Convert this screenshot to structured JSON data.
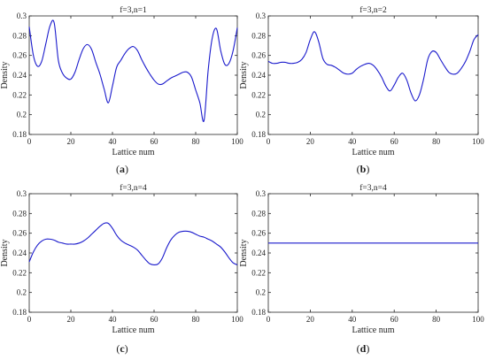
{
  "chart_data": [
    {
      "type": "line",
      "title": "f=3,n=1",
      "caption_letter": "a",
      "xlabel": "Lattice num",
      "ylabel": "Density",
      "xlim": [
        0,
        100
      ],
      "ylim": [
        0.18,
        0.3
      ],
      "xticks": [
        "0",
        "20",
        "40",
        "60",
        "80",
        "100"
      ],
      "yticks": [
        "0.18",
        "0.2",
        "0.22",
        "0.24",
        "0.26",
        "0.28",
        "0.3"
      ],
      "grid": false,
      "line_color": "#1a1acc",
      "series": [
        {
          "x": [
            0,
            2,
            4,
            6,
            8,
            10,
            12,
            14,
            16,
            18,
            20,
            22,
            24,
            26,
            28,
            30,
            32,
            34,
            36,
            38,
            40,
            42,
            44,
            46,
            48,
            50,
            52,
            54,
            56,
            58,
            60,
            62,
            64,
            66,
            68,
            70,
            72,
            74,
            76,
            78,
            80,
            82,
            84,
            86,
            88,
            90,
            92,
            94,
            96,
            98,
            100
          ],
          "values": [
            0.289,
            0.26,
            0.249,
            0.254,
            0.272,
            0.29,
            0.293,
            0.255,
            0.242,
            0.237,
            0.236,
            0.243,
            0.256,
            0.267,
            0.271,
            0.266,
            0.253,
            0.241,
            0.226,
            0.212,
            0.229,
            0.248,
            0.255,
            0.262,
            0.267,
            0.269,
            0.265,
            0.256,
            0.248,
            0.241,
            0.235,
            0.231,
            0.231,
            0.234,
            0.237,
            0.239,
            0.241,
            0.243,
            0.243,
            0.238,
            0.225,
            0.212,
            0.194,
            0.245,
            0.278,
            0.287,
            0.265,
            0.251,
            0.252,
            0.265,
            0.288
          ]
        }
      ]
    },
    {
      "type": "line",
      "title": "f=3,n=2",
      "caption_letter": "b",
      "xlabel": "Lattice num",
      "ylabel": "Density",
      "xlim": [
        0,
        100
      ],
      "ylim": [
        0.18,
        0.3
      ],
      "xticks": [
        "0",
        "20",
        "40",
        "60",
        "80",
        "100"
      ],
      "yticks": [
        "0.18",
        "0.2",
        "0.22",
        "0.24",
        "0.26",
        "0.28",
        "0.3"
      ],
      "grid": false,
      "line_color": "#1a1acc",
      "series": [
        {
          "x": [
            0,
            2,
            4,
            6,
            8,
            10,
            12,
            14,
            16,
            18,
            20,
            22,
            24,
            26,
            28,
            30,
            32,
            34,
            36,
            38,
            40,
            42,
            44,
            46,
            48,
            50,
            52,
            54,
            56,
            58,
            60,
            62,
            64,
            66,
            68,
            70,
            72,
            74,
            76,
            78,
            80,
            82,
            84,
            86,
            88,
            90,
            92,
            94,
            96,
            98,
            100
          ],
          "values": [
            0.254,
            0.252,
            0.252,
            0.253,
            0.253,
            0.252,
            0.252,
            0.253,
            0.256,
            0.263,
            0.276,
            0.284,
            0.274,
            0.257,
            0.251,
            0.25,
            0.248,
            0.245,
            0.242,
            0.241,
            0.242,
            0.246,
            0.249,
            0.251,
            0.252,
            0.25,
            0.245,
            0.238,
            0.229,
            0.224,
            0.23,
            0.238,
            0.242,
            0.235,
            0.222,
            0.214,
            0.22,
            0.236,
            0.256,
            0.264,
            0.263,
            0.256,
            0.249,
            0.243,
            0.241,
            0.242,
            0.247,
            0.254,
            0.264,
            0.276,
            0.281
          ]
        }
      ]
    },
    {
      "type": "line",
      "title": "f=3,n=4",
      "caption_letter": "c",
      "xlabel": "Lattice num",
      "ylabel": "Density",
      "xlim": [
        0,
        100
      ],
      "ylim": [
        0.18,
        0.3
      ],
      "xticks": [
        "0",
        "20",
        "40",
        "60",
        "80",
        "100"
      ],
      "yticks": [
        "0.18",
        "0.2",
        "0.22",
        "0.24",
        "0.26",
        "0.28",
        "0.3"
      ],
      "grid": false,
      "line_color": "#1a1acc",
      "series": [
        {
          "x": [
            0,
            2,
            4,
            6,
            8,
            10,
            12,
            14,
            16,
            18,
            20,
            22,
            24,
            26,
            28,
            30,
            32,
            34,
            36,
            38,
            40,
            42,
            44,
            46,
            48,
            50,
            52,
            54,
            56,
            58,
            60,
            62,
            64,
            66,
            68,
            70,
            72,
            74,
            76,
            78,
            80,
            82,
            84,
            86,
            88,
            90,
            92,
            94,
            96,
            98,
            100
          ],
          "values": [
            0.231,
            0.241,
            0.248,
            0.252,
            0.254,
            0.254,
            0.253,
            0.251,
            0.25,
            0.249,
            0.249,
            0.249,
            0.25,
            0.252,
            0.255,
            0.259,
            0.263,
            0.267,
            0.27,
            0.27,
            0.265,
            0.258,
            0.253,
            0.25,
            0.248,
            0.246,
            0.243,
            0.238,
            0.233,
            0.229,
            0.228,
            0.229,
            0.235,
            0.245,
            0.253,
            0.258,
            0.261,
            0.262,
            0.262,
            0.261,
            0.259,
            0.257,
            0.256,
            0.254,
            0.252,
            0.249,
            0.246,
            0.241,
            0.235,
            0.23,
            0.228
          ]
        }
      ]
    },
    {
      "type": "line",
      "title": "f=3,n=4",
      "caption_letter": "d",
      "xlabel": "Lattice num",
      "ylabel": "Density",
      "xlim": [
        0,
        100
      ],
      "ylim": [
        0.18,
        0.3
      ],
      "xticks": [
        "0",
        "20",
        "40",
        "60",
        "80",
        "100"
      ],
      "yticks": [
        "0.18",
        "0.2",
        "0.22",
        "0.24",
        "0.26",
        "0.28",
        "0.3"
      ],
      "grid": false,
      "line_color": "#1a1acc",
      "series": [
        {
          "x": [
            0,
            10,
            20,
            30,
            40,
            50,
            60,
            70,
            80,
            90,
            100
          ],
          "values": [
            0.25,
            0.25,
            0.25,
            0.25,
            0.25,
            0.25,
            0.25,
            0.25,
            0.25,
            0.25,
            0.25
          ]
        }
      ]
    }
  ]
}
